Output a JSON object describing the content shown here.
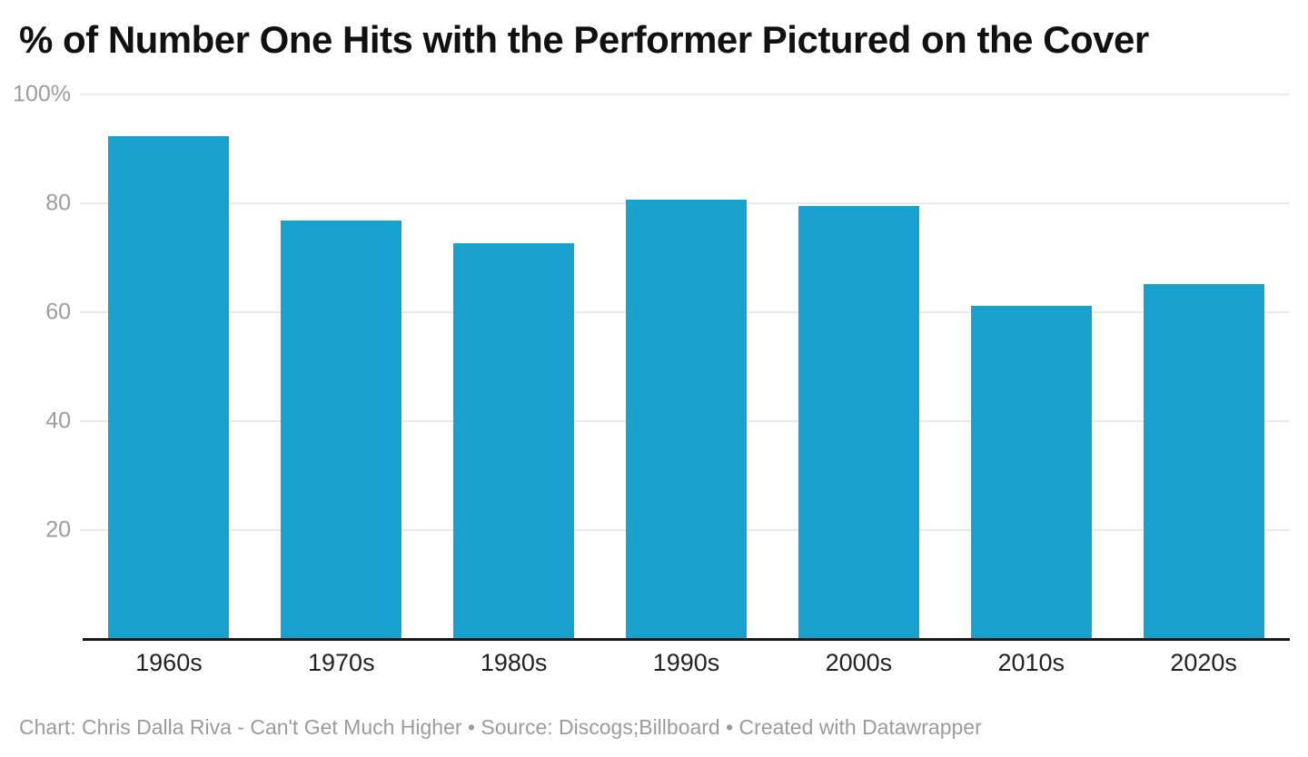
{
  "header": {
    "title": "% of Number One Hits with the Performer Pictured on the Cover"
  },
  "footer": {
    "text": "Chart: Chris Dalla Riva - Can't Get Much Higher • Source: Discogs;Billboard • Created with Datawrapper"
  },
  "colors": {
    "bar": "#18a1cd",
    "grid": "#e9e9e9",
    "axis": "#161616",
    "title": "#111111",
    "ytick": "#9c9c9c",
    "xlabel": "#222222",
    "footer": "#9b9b9b"
  },
  "chart_data": {
    "type": "bar",
    "title": "% of Number One Hits with the Performer Pictured on the Cover",
    "categories": [
      "1960s",
      "1970s",
      "1980s",
      "1990s",
      "2000s",
      "2010s",
      "2020s"
    ],
    "values": [
      92.3,
      76.8,
      72.6,
      80.7,
      79.5,
      61.2,
      65.1
    ],
    "xlabel": "",
    "ylabel": "",
    "ylim": [
      0,
      100
    ],
    "yticks": [
      {
        "value": 100,
        "label": "100%"
      },
      {
        "value": 80,
        "label": "80"
      },
      {
        "value": 60,
        "label": "60"
      },
      {
        "value": 40,
        "label": "40"
      },
      {
        "value": 20,
        "label": "20"
      }
    ],
    "grid": true,
    "legend": false,
    "legend_position": "none",
    "bar_color": "#18a1cd",
    "source_line": "Chart: Chris Dalla Riva - Can't Get Much Higher • Source: Discogs;Billboard • Created with Datawrapper"
  }
}
